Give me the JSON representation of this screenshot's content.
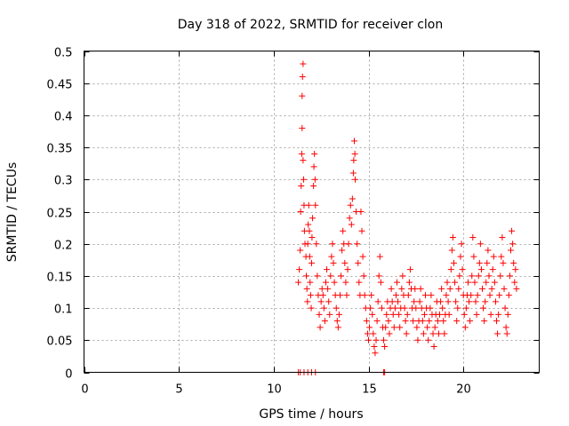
{
  "chart_data": {
    "type": "scatter",
    "title": "Day 318 of 2022, SRMTID for receiver clon",
    "xlabel": "GPS time / hours",
    "ylabel": "SRMTID / TECUs",
    "xlim": [
      0,
      24
    ],
    "ylim": [
      0,
      0.5
    ],
    "x_ticks": [
      0,
      5,
      10,
      15,
      20
    ],
    "x_tick_labels": [
      "0",
      "5",
      "10",
      "15",
      "20"
    ],
    "y_ticks": [
      0,
      0.05,
      0.1,
      0.15,
      0.2,
      0.25,
      0.3,
      0.35,
      0.4,
      0.45,
      0.5
    ],
    "y_tick_labels": [
      "0",
      "0.05",
      "0.1",
      "0.15",
      "0.2",
      "0.25",
      "0.3",
      "0.35",
      "0.4",
      "0.45",
      "0.5"
    ],
    "grid": true,
    "marker": "+",
    "color": "#ff0000",
    "series": [
      {
        "name": "SRMTID",
        "points": [
          [
            11.3,
            0.0
          ],
          [
            11.4,
            0.0
          ],
          [
            11.6,
            0.0
          ],
          [
            11.8,
            0.0
          ],
          [
            12.0,
            0.0
          ],
          [
            12.2,
            0.0
          ],
          [
            15.8,
            0.0
          ],
          [
            15.85,
            0.0
          ],
          [
            11.3,
            0.14
          ],
          [
            11.35,
            0.16
          ],
          [
            11.4,
            0.19
          ],
          [
            11.42,
            0.25
          ],
          [
            11.45,
            0.29
          ],
          [
            11.48,
            0.34
          ],
          [
            11.5,
            0.38
          ],
          [
            11.5,
            0.43
          ],
          [
            11.52,
            0.46
          ],
          [
            11.55,
            0.48
          ],
          [
            11.55,
            0.33
          ],
          [
            11.58,
            0.3
          ],
          [
            11.6,
            0.26
          ],
          [
            11.62,
            0.22
          ],
          [
            11.65,
            0.2
          ],
          [
            11.7,
            0.18
          ],
          [
            11.72,
            0.15
          ],
          [
            11.75,
            0.13
          ],
          [
            11.78,
            0.11
          ],
          [
            11.8,
            0.2
          ],
          [
            11.82,
            0.23
          ],
          [
            11.85,
            0.26
          ],
          [
            11.88,
            0.22
          ],
          [
            11.9,
            0.18
          ],
          [
            11.92,
            0.14
          ],
          [
            11.95,
            0.12
          ],
          [
            11.98,
            0.1
          ],
          [
            12.0,
            0.17
          ],
          [
            12.02,
            0.21
          ],
          [
            12.05,
            0.24
          ],
          [
            12.1,
            0.29
          ],
          [
            12.12,
            0.32
          ],
          [
            12.15,
            0.34
          ],
          [
            12.18,
            0.3
          ],
          [
            12.2,
            0.26
          ],
          [
            12.25,
            0.2
          ],
          [
            12.3,
            0.15
          ],
          [
            12.35,
            0.12
          ],
          [
            12.4,
            0.09
          ],
          [
            12.45,
            0.07
          ],
          [
            12.5,
            0.11
          ],
          [
            12.55,
            0.13
          ],
          [
            12.6,
            0.12
          ],
          [
            12.65,
            0.1
          ],
          [
            12.7,
            0.08
          ],
          [
            12.75,
            0.14
          ],
          [
            12.8,
            0.16
          ],
          [
            12.85,
            0.13
          ],
          [
            12.9,
            0.11
          ],
          [
            12.95,
            0.09
          ],
          [
            13.0,
            0.15
          ],
          [
            13.05,
            0.18
          ],
          [
            13.1,
            0.2
          ],
          [
            13.15,
            0.17
          ],
          [
            13.2,
            0.14
          ],
          [
            13.25,
            0.12
          ],
          [
            13.3,
            0.1
          ],
          [
            13.35,
            0.08
          ],
          [
            13.4,
            0.07
          ],
          [
            13.45,
            0.09
          ],
          [
            13.5,
            0.12
          ],
          [
            13.55,
            0.15
          ],
          [
            13.6,
            0.19
          ],
          [
            13.65,
            0.22
          ],
          [
            13.7,
            0.2
          ],
          [
            13.75,
            0.17
          ],
          [
            13.8,
            0.14
          ],
          [
            13.85,
            0.12
          ],
          [
            13.9,
            0.16
          ],
          [
            13.95,
            0.2
          ],
          [
            14.0,
            0.24
          ],
          [
            14.05,
            0.26
          ],
          [
            14.1,
            0.23
          ],
          [
            14.15,
            0.27
          ],
          [
            14.2,
            0.31
          ],
          [
            14.22,
            0.33
          ],
          [
            14.25,
            0.36
          ],
          [
            14.28,
            0.34
          ],
          [
            14.3,
            0.3
          ],
          [
            14.35,
            0.25
          ],
          [
            14.4,
            0.2
          ],
          [
            14.45,
            0.17
          ],
          [
            14.5,
            0.14
          ],
          [
            14.55,
            0.12
          ],
          [
            14.6,
            0.25
          ],
          [
            14.65,
            0.22
          ],
          [
            14.7,
            0.18
          ],
          [
            14.75,
            0.15
          ],
          [
            14.8,
            0.12
          ],
          [
            14.85,
            0.1
          ],
          [
            14.9,
            0.08
          ],
          [
            14.95,
            0.06
          ],
          [
            15.0,
            0.05
          ],
          [
            15.05,
            0.07
          ],
          [
            15.1,
            0.1
          ],
          [
            15.15,
            0.12
          ],
          [
            15.2,
            0.09
          ],
          [
            15.25,
            0.06
          ],
          [
            15.3,
            0.04
          ],
          [
            15.35,
            0.03
          ],
          [
            15.4,
            0.05
          ],
          [
            15.45,
            0.08
          ],
          [
            15.5,
            0.11
          ],
          [
            15.55,
            0.15
          ],
          [
            15.6,
            0.18
          ],
          [
            15.65,
            0.14
          ],
          [
            15.7,
            0.1
          ],
          [
            15.75,
            0.07
          ],
          [
            15.8,
            0.05
          ],
          [
            15.85,
            0.04
          ],
          [
            15.9,
            0.07
          ],
          [
            15.95,
            0.09
          ],
          [
            16.0,
            0.11
          ],
          [
            16.05,
            0.08
          ],
          [
            16.1,
            0.06
          ],
          [
            16.15,
            0.1
          ],
          [
            16.2,
            0.13
          ],
          [
            16.25,
            0.11
          ],
          [
            16.3,
            0.09
          ],
          [
            16.35,
            0.07
          ],
          [
            16.4,
            0.1
          ],
          [
            16.45,
            0.12
          ],
          [
            16.5,
            0.14
          ],
          [
            16.55,
            0.11
          ],
          [
            16.6,
            0.09
          ],
          [
            16.65,
            0.07
          ],
          [
            16.7,
            0.1
          ],
          [
            16.75,
            0.13
          ],
          [
            16.8,
            0.15
          ],
          [
            16.85,
            0.12
          ],
          [
            16.9,
            0.1
          ],
          [
            16.95,
            0.08
          ],
          [
            17.0,
            0.06
          ],
          [
            17.05,
            0.09
          ],
          [
            17.1,
            0.12
          ],
          [
            17.15,
            0.14
          ],
          [
            17.2,
            0.16
          ],
          [
            17.25,
            0.13
          ],
          [
            17.3,
            0.1
          ],
          [
            17.35,
            0.08
          ],
          [
            17.4,
            0.11
          ],
          [
            17.45,
            0.13
          ],
          [
            17.5,
            0.1
          ],
          [
            17.55,
            0.07
          ],
          [
            17.6,
            0.05
          ],
          [
            17.65,
            0.08
          ],
          [
            17.7,
            0.11
          ],
          [
            17.75,
            0.13
          ],
          [
            17.8,
            0.1
          ],
          [
            17.85,
            0.08
          ],
          [
            17.9,
            0.06
          ],
          [
            17.95,
            0.09
          ],
          [
            18.0,
            0.12
          ],
          [
            18.05,
            0.1
          ],
          [
            18.1,
            0.07
          ],
          [
            18.15,
            0.05
          ],
          [
            18.2,
            0.08
          ],
          [
            18.25,
            0.1
          ],
          [
            18.3,
            0.12
          ],
          [
            18.35,
            0.09
          ],
          [
            18.4,
            0.06
          ],
          [
            18.45,
            0.04
          ],
          [
            18.5,
            0.07
          ],
          [
            18.55,
            0.09
          ],
          [
            18.6,
            0.11
          ],
          [
            18.65,
            0.08
          ],
          [
            18.7,
            0.06
          ],
          [
            18.75,
            0.09
          ],
          [
            18.8,
            0.11
          ],
          [
            18.85,
            0.13
          ],
          [
            18.9,
            0.1
          ],
          [
            18.95,
            0.08
          ],
          [
            19.0,
            0.06
          ],
          [
            19.05,
            0.09
          ],
          [
            19.1,
            0.12
          ],
          [
            19.15,
            0.14
          ],
          [
            19.2,
            0.11
          ],
          [
            19.25,
            0.09
          ],
          [
            19.3,
            0.13
          ],
          [
            19.35,
            0.16
          ],
          [
            19.4,
            0.19
          ],
          [
            19.45,
            0.21
          ],
          [
            19.5,
            0.17
          ],
          [
            19.55,
            0.14
          ],
          [
            19.6,
            0.11
          ],
          [
            19.65,
            0.08
          ],
          [
            19.7,
            0.1
          ],
          [
            19.75,
            0.13
          ],
          [
            19.8,
            0.15
          ],
          [
            19.85,
            0.18
          ],
          [
            19.9,
            0.2
          ],
          [
            19.95,
            0.16
          ],
          [
            20.0,
            0.12
          ],
          [
            20.05,
            0.09
          ],
          [
            20.1,
            0.07
          ],
          [
            20.15,
            0.1
          ],
          [
            20.2,
            0.12
          ],
          [
            20.25,
            0.14
          ],
          [
            20.3,
            0.11
          ],
          [
            20.35,
            0.08
          ],
          [
            20.4,
            0.12
          ],
          [
            20.45,
            0.15
          ],
          [
            20.5,
            0.21
          ],
          [
            20.55,
            0.18
          ],
          [
            20.6,
            0.14
          ],
          [
            20.65,
            0.11
          ],
          [
            20.7,
            0.09
          ],
          [
            20.75,
            0.12
          ],
          [
            20.8,
            0.15
          ],
          [
            20.85,
            0.17
          ],
          [
            20.9,
            0.2
          ],
          [
            20.95,
            0.16
          ],
          [
            21.0,
            0.13
          ],
          [
            21.05,
            0.1
          ],
          [
            21.1,
            0.08
          ],
          [
            21.15,
            0.11
          ],
          [
            21.2,
            0.14
          ],
          [
            21.25,
            0.17
          ],
          [
            21.3,
            0.19
          ],
          [
            21.35,
            0.15
          ],
          [
            21.4,
            0.12
          ],
          [
            21.45,
            0.09
          ],
          [
            21.5,
            0.13
          ],
          [
            21.55,
            0.16
          ],
          [
            21.6,
            0.18
          ],
          [
            21.65,
            0.14
          ],
          [
            21.7,
            0.11
          ],
          [
            21.75,
            0.08
          ],
          [
            21.8,
            0.06
          ],
          [
            21.85,
            0.09
          ],
          [
            21.9,
            0.12
          ],
          [
            21.95,
            0.15
          ],
          [
            22.0,
            0.18
          ],
          [
            22.05,
            0.21
          ],
          [
            22.1,
            0.17
          ],
          [
            22.15,
            0.13
          ],
          [
            22.2,
            0.1
          ],
          [
            22.25,
            0.07
          ],
          [
            22.3,
            0.06
          ],
          [
            22.35,
            0.09
          ],
          [
            22.4,
            0.12
          ],
          [
            22.45,
            0.15
          ],
          [
            22.5,
            0.19
          ],
          [
            22.55,
            0.22
          ],
          [
            22.6,
            0.2
          ],
          [
            22.65,
            0.17
          ],
          [
            22.7,
            0.14
          ],
          [
            22.75,
            0.16
          ],
          [
            22.8,
            0.13
          ]
        ]
      }
    ]
  }
}
